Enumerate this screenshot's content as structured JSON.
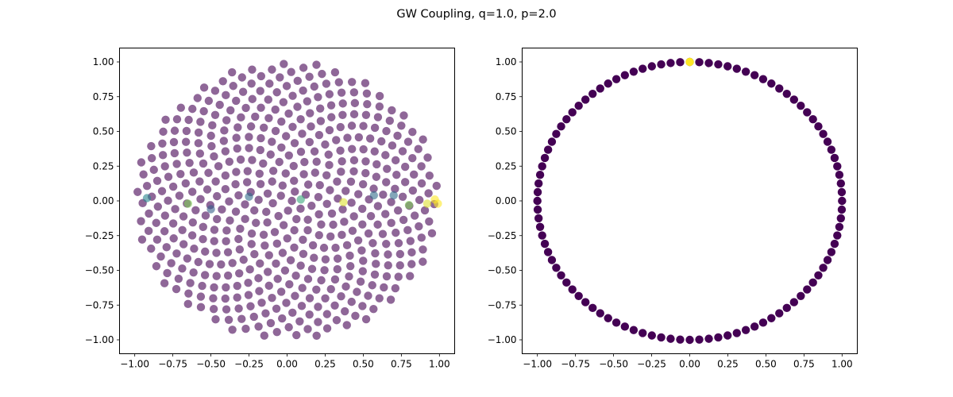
{
  "title": "GW Coupling, q=1.0, p=2.0",
  "chart_data": [
    {
      "type": "scatter",
      "title": "",
      "xlabel": "",
      "ylabel": "",
      "xlim": [
        -1.1,
        1.1
      ],
      "ylim": [
        -1.1,
        1.1
      ],
      "xticks": [
        -1.0,
        -0.75,
        -0.5,
        -0.25,
        0.0,
        0.25,
        0.5,
        0.75,
        1.0
      ],
      "yticks": [
        -1.0,
        -0.75,
        -0.5,
        -0.25,
        0.0,
        0.25,
        0.5,
        0.75,
        1.0
      ],
      "xtick_labels": [
        "−1.00",
        "−0.75",
        "−0.50",
        "−0.25",
        "0.00",
        "0.25",
        "0.50",
        "0.75",
        "1.00"
      ],
      "ytick_labels": [
        "−1.00",
        "−0.75",
        "−0.50",
        "−0.25",
        "0.00",
        "0.25",
        "0.50",
        "0.75",
        "1.00"
      ],
      "grid": false,
      "legend": "none",
      "colormap": "viridis",
      "point_alpha": 0.6,
      "background_points": {
        "description": "~500 points uniformly filling the unit disk (sunflower arrangement), colored with the colormap minimum",
        "count": 500,
        "radius": 1.0,
        "color_value": 0.0
      },
      "highlight_points": [
        {
          "x": -0.92,
          "y": 0.02,
          "c": 0.45
        },
        {
          "x": -0.65,
          "y": -0.02,
          "c": 0.8
        },
        {
          "x": -0.5,
          "y": -0.06,
          "c": 0.3
        },
        {
          "x": -0.25,
          "y": 0.03,
          "c": 0.35
        },
        {
          "x": 0.09,
          "y": 0.01,
          "c": 0.6
        },
        {
          "x": 0.37,
          "y": -0.01,
          "c": 0.95
        },
        {
          "x": 0.57,
          "y": 0.04,
          "c": 0.35
        },
        {
          "x": 0.7,
          "y": 0.04,
          "c": 0.35
        },
        {
          "x": 0.8,
          "y": -0.03,
          "c": 0.8
        },
        {
          "x": 0.92,
          "y": -0.02,
          "c": 0.95
        },
        {
          "x": 0.97,
          "y": 0.01,
          "c": 1.0
        },
        {
          "x": 0.99,
          "y": -0.02,
          "c": 1.0
        }
      ]
    },
    {
      "type": "scatter",
      "title": "",
      "xlabel": "",
      "ylabel": "",
      "xlim": [
        -1.1,
        1.1
      ],
      "ylim": [
        -1.1,
        1.1
      ],
      "xticks": [
        -1.0,
        -0.75,
        -0.5,
        -0.25,
        0.0,
        0.25,
        0.5,
        0.75,
        1.0
      ],
      "yticks": [
        -1.0,
        -0.75,
        -0.5,
        -0.25,
        0.0,
        0.25,
        0.5,
        0.75,
        1.0
      ],
      "xtick_labels": [
        "−1.00",
        "−0.75",
        "−0.50",
        "−0.25",
        "0.00",
        "0.25",
        "0.50",
        "0.75",
        "1.00"
      ],
      "ytick_labels": [
        "−1.00",
        "−0.75",
        "−0.50",
        "−0.25",
        "0.00",
        "0.25",
        "0.50",
        "0.75",
        "1.00"
      ],
      "grid": false,
      "legend": "none",
      "colormap": "viridis",
      "point_alpha": 1.0,
      "circle_points": {
        "description": "100 points evenly spaced on the unit circle starting at angle 90 degrees (0, 1)",
        "count": 100,
        "radius": 1.0,
        "start_angle_deg": 90,
        "color_value": 0.0
      },
      "highlight_points": [
        {
          "x": 0.0,
          "y": 1.0,
          "c": 1.0
        }
      ]
    }
  ],
  "colors": {
    "viridis_min": "#440154",
    "viridis_max": "#fde725"
  }
}
